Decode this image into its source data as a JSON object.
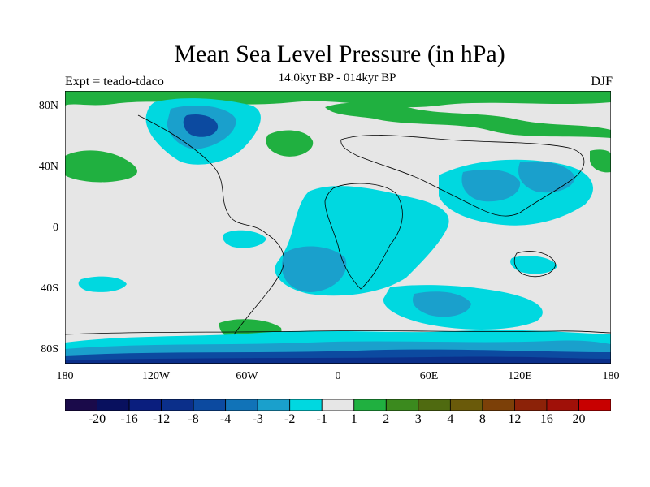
{
  "title": "Mean Sea Level Pressure (in hPa)",
  "experiment": "Expt = teado-tdaco",
  "subtitle": "14.0kyr BP - 014kyr BP",
  "season": "DJF",
  "axes": {
    "y_ticks": [
      "80N",
      "40N",
      "0",
      "40S",
      "80S"
    ],
    "x_ticks": [
      "180",
      "120W",
      "60W",
      "0",
      "60E",
      "120E",
      "180"
    ]
  },
  "legend": {
    "colors": [
      "#1a0a4a",
      "#08105e",
      "#0a1e7e",
      "#0b2f8a",
      "#0c4aa0",
      "#1173b8",
      "#1aa0cc",
      "#00d8e0",
      "#e6e6e6",
      "#20b040",
      "#3b8a1e",
      "#4f6a10",
      "#6a5a0a",
      "#7c4008",
      "#8c2208",
      "#a01008",
      "#c80000"
    ],
    "labels": [
      "-20",
      "-16",
      "-12",
      "-8",
      "-4",
      "-3",
      "-2",
      "-1",
      "1",
      "2",
      "3",
      "4",
      "8",
      "12",
      "16",
      "20"
    ]
  }
}
